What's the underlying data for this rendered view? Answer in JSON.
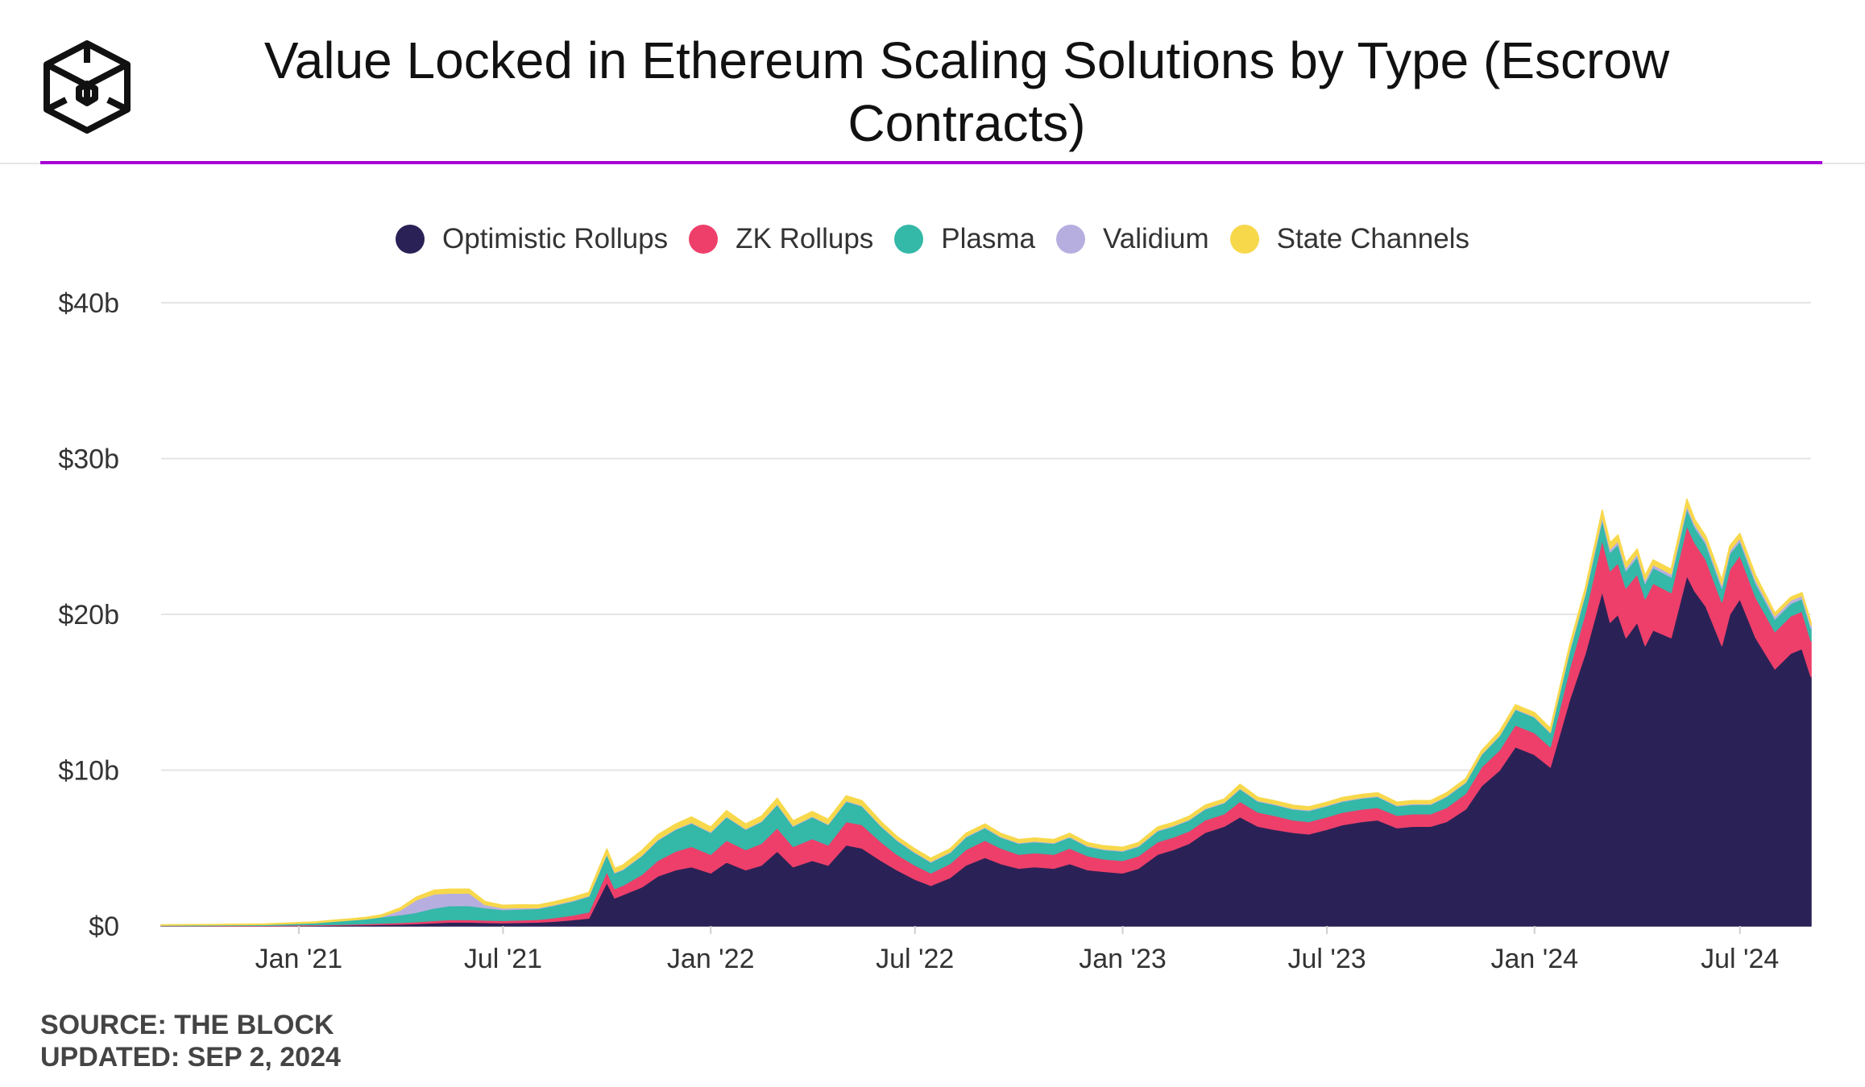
{
  "title": "Value Locked in Ethereum Scaling Solutions by Type (Escrow Contracts)",
  "brand": {
    "logo_icon": "the-block-cube-icon",
    "accent_color": "#a800d6"
  },
  "footer": {
    "source": "SOURCE: THE BLOCK",
    "updated": "UPDATED: SEP 2, 2024"
  },
  "chart_data": {
    "type": "area",
    "stacked": true,
    "title": "Value Locked in Ethereum Scaling Solutions by Type (Escrow Contracts)",
    "xlabel": "",
    "ylabel": "",
    "grid": true,
    "legend_position": "top-center",
    "x_ticks": [
      "Jan '21",
      "Jul '21",
      "Jan '22",
      "Jul '22",
      "Jan '23",
      "Jul '23",
      "Jan '24",
      "Jul '24"
    ],
    "y_ticks": [
      "$0",
      "$10b",
      "$20b",
      "$30b",
      "$40b"
    ],
    "ylim": [
      0,
      40
    ],
    "y_unit": "USD billions",
    "x": [
      "2020-09-01",
      "2020-10-01",
      "2020-11-01",
      "2020-12-01",
      "2021-01-01",
      "2021-01-15",
      "2021-02-01",
      "2021-02-15",
      "2021-03-01",
      "2021-03-15",
      "2021-04-01",
      "2021-04-15",
      "2021-05-01",
      "2021-05-15",
      "2021-06-01",
      "2021-06-15",
      "2021-07-01",
      "2021-07-15",
      "2021-08-01",
      "2021-08-15",
      "2021-09-01",
      "2021-09-15",
      "2021-10-01",
      "2021-10-08",
      "2021-10-15",
      "2021-11-01",
      "2021-11-15",
      "2021-12-01",
      "2021-12-15",
      "2022-01-01",
      "2022-01-15",
      "2022-02-01",
      "2022-02-15",
      "2022-03-01",
      "2022-03-15",
      "2022-04-01",
      "2022-04-15",
      "2022-05-01",
      "2022-05-15",
      "2022-06-01",
      "2022-06-15",
      "2022-07-01",
      "2022-07-15",
      "2022-08-01",
      "2022-08-15",
      "2022-09-01",
      "2022-09-15",
      "2022-10-01",
      "2022-10-15",
      "2022-11-01",
      "2022-11-15",
      "2022-12-01",
      "2022-12-15",
      "2023-01-01",
      "2023-01-15",
      "2023-02-01",
      "2023-02-15",
      "2023-03-01",
      "2023-03-15",
      "2023-04-01",
      "2023-04-15",
      "2023-05-01",
      "2023-05-15",
      "2023-06-01",
      "2023-06-15",
      "2023-07-01",
      "2023-07-15",
      "2023-08-01",
      "2023-08-15",
      "2023-09-01",
      "2023-09-15",
      "2023-10-01",
      "2023-10-15",
      "2023-11-01",
      "2023-11-15",
      "2023-12-01",
      "2023-12-15",
      "2024-01-01",
      "2024-01-15",
      "2024-02-01",
      "2024-02-15",
      "2024-03-01",
      "2024-03-08",
      "2024-03-15",
      "2024-03-22",
      "2024-04-01",
      "2024-04-08",
      "2024-04-15",
      "2024-05-01",
      "2024-05-15",
      "2024-05-22",
      "2024-06-01",
      "2024-06-15",
      "2024-06-22",
      "2024-07-01",
      "2024-07-15",
      "2024-08-01",
      "2024-08-15",
      "2024-08-25",
      "2024-09-02"
    ],
    "series": [
      {
        "name": "Optimistic Rollups",
        "color": "#2a2256",
        "values": [
          0,
          0,
          0,
          0,
          0.02,
          0.03,
          0.05,
          0.06,
          0.08,
          0.1,
          0.12,
          0.15,
          0.2,
          0.25,
          0.25,
          0.22,
          0.2,
          0.22,
          0.25,
          0.3,
          0.4,
          0.5,
          2.8,
          1.8,
          2.0,
          2.5,
          3.2,
          3.6,
          3.8,
          3.4,
          4.1,
          3.6,
          3.9,
          4.8,
          3.8,
          4.2,
          3.9,
          5.2,
          5.0,
          4.2,
          3.6,
          3.0,
          2.6,
          3.1,
          3.9,
          4.4,
          4.0,
          3.7,
          3.8,
          3.7,
          4.0,
          3.6,
          3.5,
          3.4,
          3.7,
          4.6,
          4.9,
          5.3,
          6.0,
          6.4,
          7.0,
          6.4,
          6.2,
          6.0,
          5.9,
          6.2,
          6.5,
          6.7,
          6.8,
          6.3,
          6.4,
          6.4,
          6.7,
          7.5,
          9.0,
          10.0,
          11.5,
          11.0,
          10.2,
          14.5,
          17.5,
          21.5,
          19.5,
          20.0,
          18.5,
          19.5,
          18.0,
          19.0,
          18.5,
          22.5,
          21.5,
          20.5,
          18.0,
          20.0,
          21.0,
          18.5,
          16.5,
          17.5,
          17.8,
          16.0
        ]
      },
      {
        "name": "ZK Rollups",
        "color": "#ed3f6a",
        "values": [
          0.02,
          0.02,
          0.03,
          0.03,
          0.05,
          0.05,
          0.05,
          0.06,
          0.07,
          0.08,
          0.1,
          0.12,
          0.15,
          0.16,
          0.16,
          0.15,
          0.15,
          0.16,
          0.17,
          0.22,
          0.3,
          0.4,
          0.7,
          0.6,
          0.6,
          0.8,
          1.0,
          1.2,
          1.3,
          1.2,
          1.4,
          1.3,
          1.4,
          1.5,
          1.3,
          1.4,
          1.3,
          1.5,
          1.5,
          1.2,
          1.0,
          0.9,
          0.8,
          0.9,
          1.0,
          1.1,
          1.0,
          0.9,
          0.9,
          0.9,
          1.0,
          0.9,
          0.8,
          0.8,
          0.8,
          0.8,
          0.8,
          0.8,
          0.8,
          0.8,
          1.0,
          0.9,
          0.9,
          0.8,
          0.8,
          0.8,
          0.8,
          0.8,
          0.8,
          0.8,
          0.8,
          0.8,
          0.9,
          1.0,
          1.2,
          1.3,
          1.4,
          1.4,
          1.3,
          2.0,
          2.6,
          3.3,
          3.3,
          3.3,
          3.2,
          3.1,
          3.0,
          3.0,
          2.9,
          3.2,
          3.1,
          3.0,
          2.8,
          2.9,
          2.8,
          2.6,
          2.4,
          2.4,
          2.4,
          2.3
        ]
      },
      {
        "name": "Plasma",
        "color": "#34b8a8",
        "values": [
          0.03,
          0.04,
          0.05,
          0.06,
          0.1,
          0.12,
          0.2,
          0.25,
          0.3,
          0.4,
          0.5,
          0.6,
          0.8,
          0.9,
          0.9,
          0.8,
          0.7,
          0.7,
          0.7,
          0.8,
          0.9,
          1.0,
          1.1,
          1.0,
          1.0,
          1.2,
          1.3,
          1.4,
          1.5,
          1.4,
          1.5,
          1.3,
          1.4,
          1.5,
          1.3,
          1.4,
          1.3,
          1.3,
          1.2,
          1.0,
          0.9,
          0.8,
          0.7,
          0.7,
          0.8,
          0.8,
          0.7,
          0.7,
          0.7,
          0.7,
          0.7,
          0.6,
          0.6,
          0.6,
          0.6,
          0.7,
          0.7,
          0.7,
          0.7,
          0.7,
          0.8,
          0.7,
          0.7,
          0.7,
          0.7,
          0.7,
          0.7,
          0.7,
          0.7,
          0.6,
          0.6,
          0.6,
          0.7,
          0.7,
          0.8,
          0.9,
          1.0,
          1.0,
          0.9,
          1.1,
          1.2,
          1.3,
          1.2,
          1.2,
          1.1,
          1.1,
          1.0,
          1.0,
          1.0,
          1.1,
          1.0,
          1.0,
          0.9,
          1.0,
          0.9,
          0.9,
          0.8,
          0.8,
          0.8,
          0.8
        ]
      },
      {
        "name": "Validium",
        "color": "#b7aee0",
        "values": [
          0,
          0,
          0,
          0,
          0,
          0,
          0,
          0,
          0,
          0.01,
          0.3,
          0.8,
          0.9,
          0.8,
          0.8,
          0.2,
          0.1,
          0.1,
          0.05,
          0.05,
          0.05,
          0.05,
          0.05,
          0.05,
          0.05,
          0.05,
          0.05,
          0.05,
          0.05,
          0.05,
          0.05,
          0.05,
          0.05,
          0.05,
          0.05,
          0.05,
          0.05,
          0.05,
          0.05,
          0.05,
          0.05,
          0.05,
          0.05,
          0.05,
          0.05,
          0.05,
          0.05,
          0.05,
          0.05,
          0.05,
          0.05,
          0.05,
          0.05,
          0.05,
          0.05,
          0.05,
          0.05,
          0.05,
          0.05,
          0.05,
          0.05,
          0.05,
          0.05,
          0.05,
          0.05,
          0.05,
          0.05,
          0.05,
          0.05,
          0.05,
          0.05,
          0.05,
          0.05,
          0.05,
          0.05,
          0.05,
          0.05,
          0.05,
          0.05,
          0.1,
          0.1,
          0.2,
          0.2,
          0.2,
          0.2,
          0.2,
          0.2,
          0.2,
          0.2,
          0.2,
          0.2,
          0.2,
          0.2,
          0.2,
          0.2,
          0.2,
          0.2,
          0.2,
          0.2,
          0.2
        ]
      },
      {
        "name": "State Channels",
        "color": "#f7d84b",
        "values": [
          0.03,
          0.03,
          0.03,
          0.04,
          0.05,
          0.06,
          0.07,
          0.08,
          0.1,
          0.12,
          0.15,
          0.18,
          0.25,
          0.25,
          0.25,
          0.2,
          0.18,
          0.18,
          0.18,
          0.18,
          0.2,
          0.2,
          0.3,
          0.25,
          0.25,
          0.3,
          0.3,
          0.3,
          0.35,
          0.3,
          0.35,
          0.3,
          0.3,
          0.35,
          0.3,
          0.3,
          0.3,
          0.3,
          0.3,
          0.25,
          0.2,
          0.2,
          0.2,
          0.2,
          0.2,
          0.2,
          0.2,
          0.2,
          0.2,
          0.2,
          0.2,
          0.2,
          0.2,
          0.2,
          0.2,
          0.2,
          0.2,
          0.2,
          0.2,
          0.2,
          0.25,
          0.2,
          0.2,
          0.2,
          0.2,
          0.2,
          0.2,
          0.2,
          0.2,
          0.2,
          0.2,
          0.2,
          0.2,
          0.2,
          0.2,
          0.25,
          0.25,
          0.25,
          0.25,
          0.3,
          0.3,
          0.4,
          0.4,
          0.4,
          0.3,
          0.3,
          0.3,
          0.3,
          0.3,
          0.4,
          0.3,
          0.3,
          0.3,
          0.3,
          0.3,
          0.3,
          0.2,
          0.2,
          0.2,
          0.2
        ]
      }
    ]
  }
}
